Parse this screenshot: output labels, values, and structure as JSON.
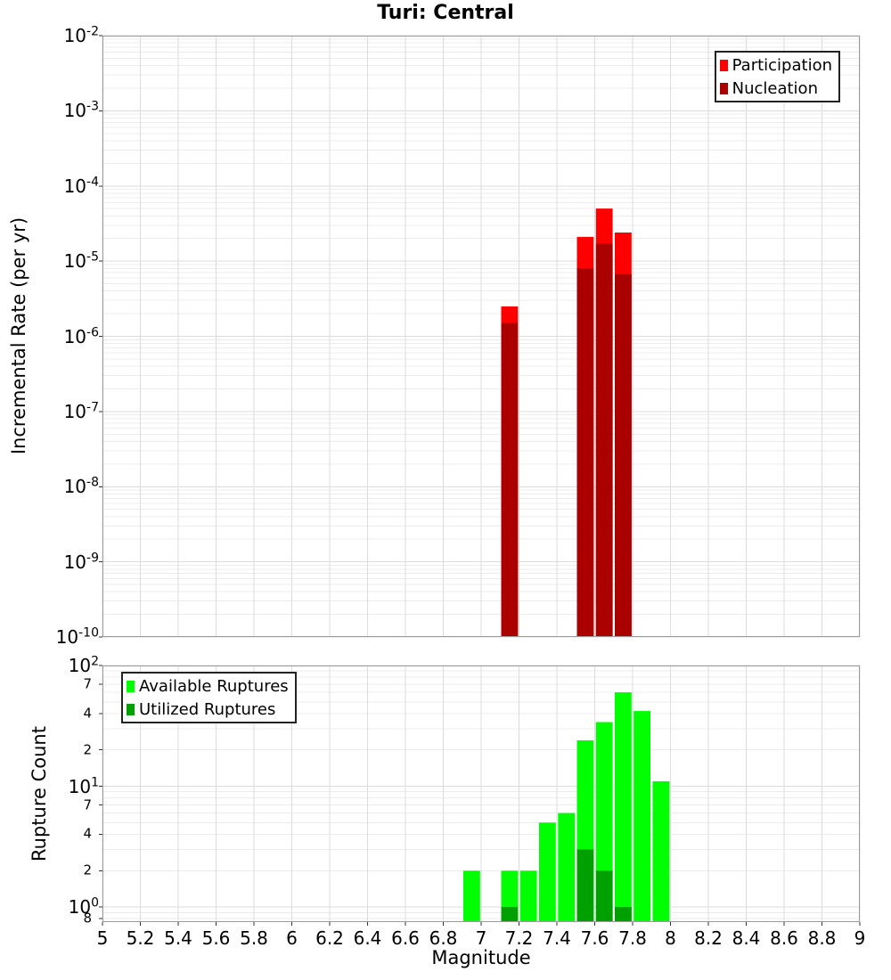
{
  "title": "Turi: Central",
  "x_axis": {
    "label": "Magnitude",
    "ticks": [
      {
        "text": "5",
        "value": 5
      },
      {
        "text": "5.2",
        "value": 5.2
      },
      {
        "text": "5.4",
        "value": 5.4
      },
      {
        "text": "5.6",
        "value": 5.6
      },
      {
        "text": "5.8",
        "value": 5.8
      },
      {
        "text": "6",
        "value": 6
      },
      {
        "text": "6.2",
        "value": 6.2
      },
      {
        "text": "6.4",
        "value": 6.4
      },
      {
        "text": "6.6",
        "value": 6.6
      },
      {
        "text": "6.8",
        "value": 6.8
      },
      {
        "text": "7",
        "value": 7
      },
      {
        "text": "7.2",
        "value": 7.2
      },
      {
        "text": "7.4",
        "value": 7.4
      },
      {
        "text": "7.6",
        "value": 7.6
      },
      {
        "text": "7.8",
        "value": 7.8
      },
      {
        "text": "8",
        "value": 8
      },
      {
        "text": "8.2",
        "value": 8.2
      },
      {
        "text": "8.4",
        "value": 8.4
      },
      {
        "text": "8.6",
        "value": 8.6
      },
      {
        "text": "8.8",
        "value": 8.8
      },
      {
        "text": "9",
        "value": 9
      }
    ]
  },
  "colors": {
    "participation_red": "#ff0000",
    "nucleation_dark_red": "#aa0000",
    "available_green": "#00ff00",
    "utilized_dark_green": "#00a000",
    "grid_major": "#dcdcdc",
    "grid_minor": "#ececec",
    "plot_border": "#9b9b9b",
    "tick_mark": "#333333",
    "background": "#ffffff",
    "text": "#000000"
  },
  "chart_data": [
    {
      "id": "rate",
      "type": "bar",
      "title": "Turi: Central",
      "xlabel": "Magnitude",
      "ylabel": "Incremental Rate (per yr)",
      "yscale": "log",
      "xlim": [
        5,
        9
      ],
      "ylim": [
        1e-10,
        0.01
      ],
      "x_grid_step": 0.2,
      "x_bin_width": 0.1,
      "grid": true,
      "legend_position": "top-right",
      "show_x_tick_labels": false,
      "y_ticks": {
        "major_exponents": [
          -2,
          -3,
          -4,
          -5,
          -6,
          -7,
          -8,
          -9,
          -10
        ],
        "minor_labeled": []
      },
      "x": [
        7.15,
        7.55,
        7.65,
        7.75
      ],
      "series": [
        {
          "name": "Participation",
          "color": "#ff0000",
          "values": [
            2.5e-06,
            2.1e-05,
            5e-05,
            2.4e-05
          ]
        },
        {
          "name": "Nucleation",
          "color": "#aa0000",
          "values": [
            1.5e-06,
            8e-06,
            1.7e-05,
            6.7e-06
          ]
        }
      ]
    },
    {
      "id": "count",
      "type": "bar",
      "title": "",
      "xlabel": "Magnitude",
      "ylabel": "Rupture Count",
      "yscale": "log",
      "xlim": [
        5,
        9
      ],
      "ylim": [
        0.75,
        100
      ],
      "x_grid_step": 0.2,
      "x_bin_width": 0.1,
      "grid": true,
      "legend_position": "top-left",
      "show_x_tick_labels": true,
      "y_ticks": {
        "major_exponents": [
          2,
          1,
          0
        ],
        "minor_labeled": [
          {
            "text": "7",
            "value": 70
          },
          {
            "text": "4",
            "value": 40
          },
          {
            "text": "2",
            "value": 20
          },
          {
            "text": "7",
            "value": 7
          },
          {
            "text": "4",
            "value": 4
          },
          {
            "text": "2",
            "value": 2
          },
          {
            "text": "8",
            "value": 0.8
          }
        ]
      },
      "x": [
        6.95,
        7.15,
        7.25,
        7.35,
        7.45,
        7.55,
        7.65,
        7.75,
        7.85,
        7.95
      ],
      "series": [
        {
          "name": "Available Ruptures",
          "color": "#00ff00",
          "values": [
            2,
            2,
            2,
            5,
            6,
            24,
            34,
            60,
            42,
            11
          ]
        },
        {
          "name": "Utilized Ruptures",
          "color": "#00a000",
          "values": [
            0,
            1,
            0,
            0,
            0,
            3,
            2,
            1,
            0,
            0
          ]
        }
      ]
    }
  ]
}
